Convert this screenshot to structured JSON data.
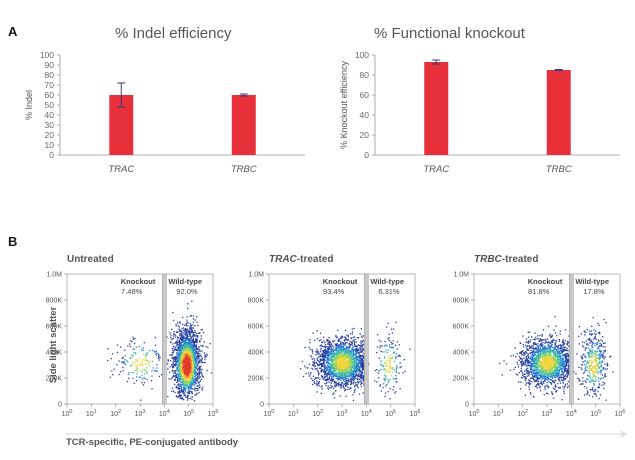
{
  "panels": {
    "a": "A",
    "b": "B"
  },
  "chart_data": [
    {
      "type": "bar",
      "title": "% Indel efficiency",
      "ylabel": "% Indel",
      "categories": [
        "TRAC",
        "TRBC"
      ],
      "values": [
        60,
        60
      ],
      "error_high": [
        72,
        61
      ],
      "error_low": [
        48,
        59
      ],
      "ylim": [
        0,
        100
      ],
      "yticks": [
        0,
        10,
        20,
        30,
        40,
        50,
        60,
        70,
        80,
        90,
        100
      ],
      "bar_color": "#e8303a",
      "error_color": "#3a3a7a"
    },
    {
      "type": "bar",
      "title": "% Functional knockout",
      "ylabel": "% Knockout efficiency",
      "categories": [
        "TRAC",
        "TRBC"
      ],
      "values": [
        93,
        85
      ],
      "error_high": [
        95,
        85.5
      ],
      "error_low": [
        91,
        84.5
      ],
      "ylim": [
        0,
        100
      ],
      "yticks": [
        0,
        20,
        40,
        60,
        80,
        100
      ],
      "bar_color": "#e8303a",
      "error_color": "#3a3a7a"
    },
    {
      "type": "scatter",
      "subplots": [
        {
          "title_italic": "",
          "title_rest": "Untreated",
          "knockout_label": "Knockout",
          "knockout_pct": "7.48%",
          "wildtype_label": "Wild-type",
          "wildtype_pct": "92.0%",
          "knockout_fraction": 0.0748
        },
        {
          "title_italic": "TRAC",
          "title_rest": "-treated",
          "knockout_label": "Knockout",
          "knockout_pct": "93.4%",
          "wildtype_label": "Wild-type",
          "wildtype_pct": "6.31%",
          "knockout_fraction": 0.934
        },
        {
          "title_italic": "TRBC",
          "title_rest": "-treated",
          "knockout_label": "Knockout",
          "knockout_pct": "81.8%",
          "wildtype_label": "Wild-type",
          "wildtype_pct": "17.8%",
          "knockout_fraction": 0.818
        }
      ],
      "xscale": "log",
      "xlim": [
        1,
        1000000
      ],
      "xticks_exp": [
        "0",
        "1",
        "2",
        "3",
        "4",
        "5",
        "6"
      ],
      "tick_base": "10",
      "gate_log10": 4,
      "ylim": [
        0,
        1000000
      ],
      "yticks": [
        "1.0M",
        "800K",
        "600K",
        "400K",
        "200K",
        "0"
      ],
      "ylabel": "Side light scatter",
      "xlabel": "TCR-specific, PE-conjugated antibody",
      "density_colors": [
        "#2a3f9e",
        "#2a7fd0",
        "#3cb8b0",
        "#9ad35a",
        "#f0d43a",
        "#f08a30",
        "#e03a2a"
      ]
    }
  ]
}
